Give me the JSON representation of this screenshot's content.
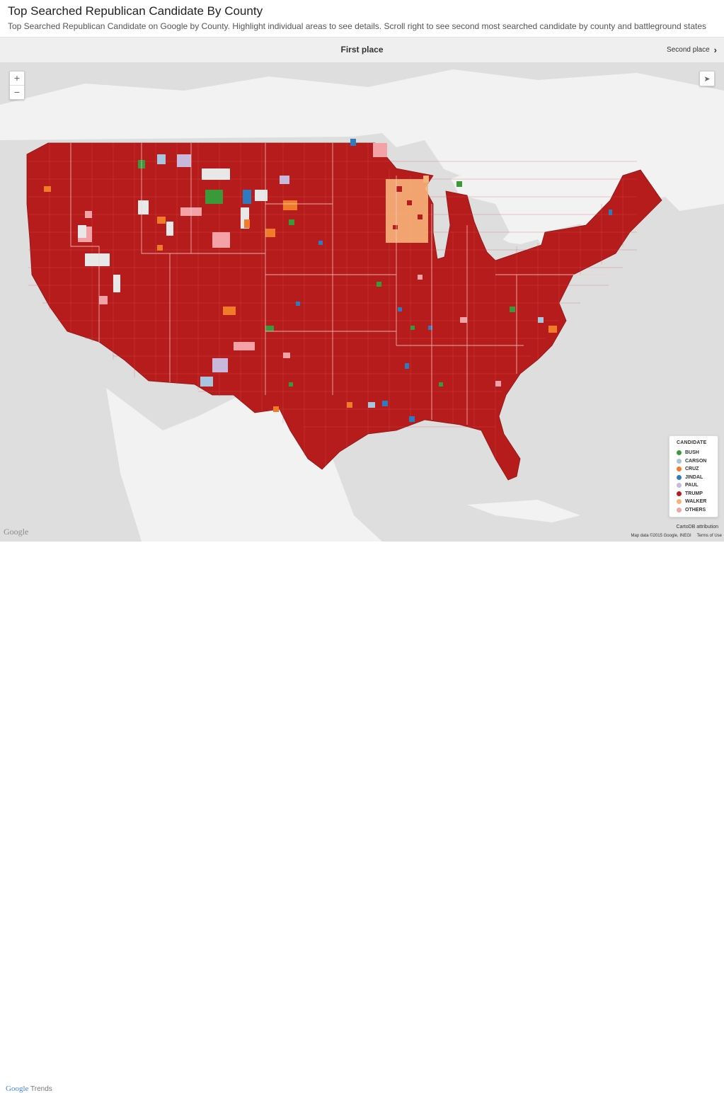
{
  "header": {
    "title": "Top Searched Republican Candidate By County",
    "subtitle": "Top Searched Republican Candidate on Google by County. Highlight individual areas to see details. Scroll right to see second most searched candidate by county and battleground states"
  },
  "nav": {
    "current": "First place",
    "next_label": "Second place"
  },
  "zoom": {
    "in": "+",
    "out": "−"
  },
  "legend": {
    "title": "CANDIDATE",
    "items": [
      {
        "label": "BUSH",
        "color": "#3a9a3a"
      },
      {
        "label": "CARSON",
        "color": "#a9c4de"
      },
      {
        "label": "CRUZ",
        "color": "#f07c2a"
      },
      {
        "label": "JINDAL",
        "color": "#2e7bbf"
      },
      {
        "label": "PAUL",
        "color": "#c8b8dc"
      },
      {
        "label": "TRUMP",
        "color": "#b71c1c"
      },
      {
        "label": "WALKER",
        "color": "#f7b27a"
      },
      {
        "label": "OTHERS",
        "color": "#f3a3a8"
      }
    ]
  },
  "attribution": {
    "carto": "CartoDB attribution",
    "map_data": "Map data ©2015 Google, INEGI",
    "terms": "Terms of Use"
  },
  "google_logo": "Google",
  "footer": {
    "brand_google": "Google",
    "brand_trends": "Trends"
  },
  "map_colors": {
    "water": "#dedede",
    "land": "#f2f2f2",
    "base": "#b71c1c"
  }
}
